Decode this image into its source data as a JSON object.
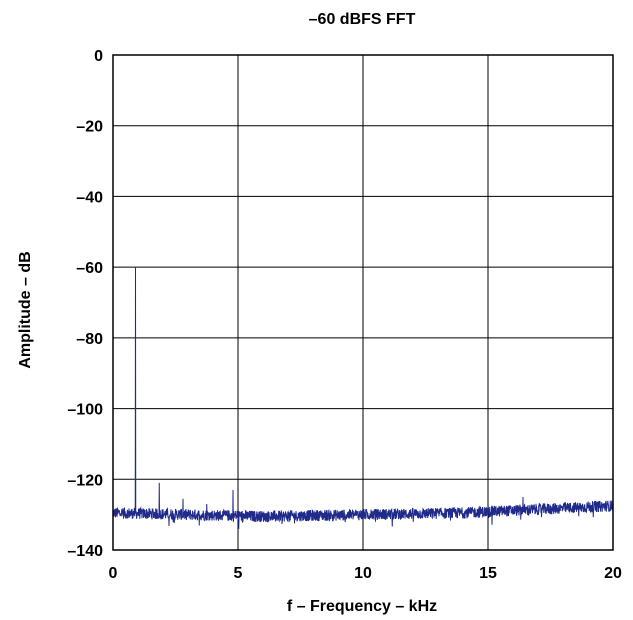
{
  "chart_data": {
    "type": "line",
    "title": "–60 dBFS FFT",
    "xlabel": "f – Frequency – kHz",
    "ylabel": "Amplitude – dB",
    "xlim": [
      0,
      20
    ],
    "ylim": [
      -140,
      0
    ],
    "x_ticks": [
      0,
      5,
      10,
      15,
      20
    ],
    "x_tick_labels": [
      "0",
      "5",
      "10",
      "15",
      "20"
    ],
    "y_ticks": [
      0,
      -20,
      -40,
      -60,
      -80,
      -100,
      -120,
      -140
    ],
    "y_tick_labels": [
      "0",
      "–20",
      "–40",
      "–60",
      "–80",
      "–100",
      "–120",
      "–140"
    ],
    "grid": true,
    "line_color": "#1f2a8a",
    "series": [
      {
        "noise_floor_profile": [
          {
            "x": 0,
            "y": -129.5
          },
          {
            "x": 3,
            "y": -130
          },
          {
            "x": 6,
            "y": -130.5
          },
          {
            "x": 10,
            "y": -130
          },
          {
            "x": 14,
            "y": -129.5
          },
          {
            "x": 17,
            "y": -128.5
          },
          {
            "x": 20,
            "y": -127.5
          }
        ],
        "peaks": [
          {
            "x": 0.9,
            "y": -60
          },
          {
            "x": 1.85,
            "y": -121
          },
          {
            "x": 2.8,
            "y": -125.5
          },
          {
            "x": 3.75,
            "y": -127
          },
          {
            "x": 4.8,
            "y": -123
          },
          {
            "x": 16.4,
            "y": -125
          }
        ]
      }
    ]
  }
}
